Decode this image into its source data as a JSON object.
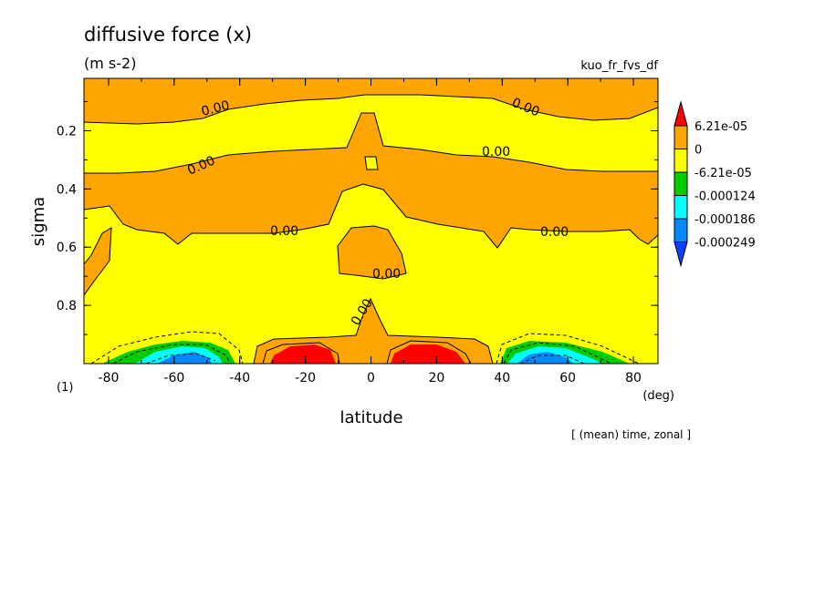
{
  "chart_data": {
    "type": "contour",
    "title": "diffusive force (x)",
    "units": "(m s-2)",
    "variable": "kuo_fr_fvs_df",
    "xlabel": "latitude",
    "xunit": "(deg)",
    "ylabel": "sigma",
    "yunit": "(1)",
    "footer": "[ (mean) time, zonal ]",
    "xlim": [
      -87.5,
      87.5
    ],
    "ylim": [
      0.02,
      1.0
    ],
    "x_ticks": [
      -80,
      -60,
      -40,
      -20,
      0,
      20,
      40,
      60,
      80
    ],
    "x_tick_labels": [
      "-80",
      "-60",
      "-40",
      "-20",
      "0",
      "20",
      "40",
      "60",
      "80"
    ],
    "y_ticks": [
      0.2,
      0.4,
      0.6,
      0.8
    ],
    "y_tick_labels": [
      "0.2",
      "0.4",
      "0.6",
      "0.8"
    ],
    "contour_labels": [
      "0.00",
      "0.00",
      "0.00",
      "0.00",
      "0.00",
      "0.00",
      "0.00",
      "0.00"
    ],
    "legend": {
      "labels": [
        "6.21e-05",
        "0",
        "-6.21e-05",
        "-0.000124",
        "-0.000186",
        "-0.000249"
      ],
      "colors": [
        "#ff0000",
        "#ffa500",
        "#ffff00",
        "#00cc00",
        "#00ffff",
        "#0088ff",
        "#0044ff"
      ]
    }
  }
}
